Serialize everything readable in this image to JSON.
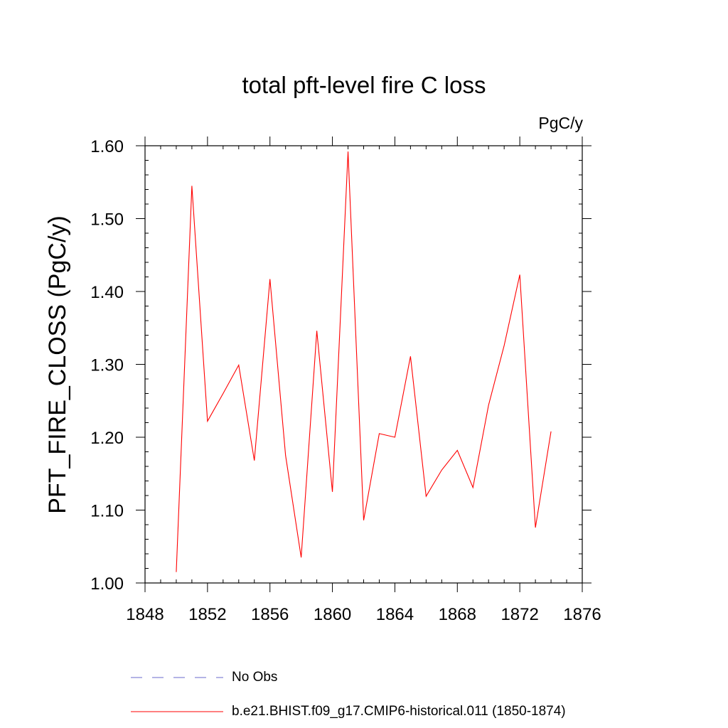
{
  "chart_data": {
    "type": "line",
    "title": "total pft-level fire C loss",
    "units_label": "PgC/y",
    "ylabel": "PFT_FIRE_CLOSS  (PgC/y)",
    "xlabel": "",
    "xlim": [
      1848,
      1876
    ],
    "ylim": [
      1.0,
      1.6
    ],
    "x_ticks": [
      1848,
      1852,
      1856,
      1860,
      1864,
      1868,
      1872,
      1876
    ],
    "y_ticks": [
      1.0,
      1.1,
      1.2,
      1.3,
      1.4,
      1.5,
      1.6
    ],
    "x_tick_labels": [
      "1848",
      "1852",
      "1856",
      "1860",
      "1864",
      "1868",
      "1872",
      "1876"
    ],
    "y_tick_labels": [
      "1.00",
      "1.10",
      "1.20",
      "1.30",
      "1.40",
      "1.50",
      "1.60"
    ],
    "grid": false,
    "legend_position": "bottom",
    "series": [
      {
        "name": "No Obs",
        "color": "#6a6acd",
        "style": "dashed",
        "x": [],
        "values": []
      },
      {
        "name": "b.e21.BHIST.f09_g17.CMIP6-historical.011 (1850-1874)",
        "color": "#ff0000",
        "style": "solid",
        "x": [
          1850,
          1851,
          1852,
          1853,
          1854,
          1855,
          1856,
          1857,
          1858,
          1859,
          1860,
          1861,
          1862,
          1863,
          1864,
          1865,
          1866,
          1867,
          1868,
          1869,
          1870,
          1871,
          1872,
          1873,
          1874
        ],
        "values": [
          1.015,
          1.545,
          1.222,
          1.26,
          1.299,
          1.168,
          1.417,
          1.175,
          1.035,
          1.346,
          1.125,
          1.592,
          1.086,
          1.205,
          1.2,
          1.311,
          1.119,
          1.155,
          1.182,
          1.131,
          1.244,
          1.326,
          1.423,
          1.076,
          1.208
        ]
      }
    ]
  },
  "legend": {
    "items": [
      {
        "label": "No Obs",
        "color": "#6a6acd",
        "style": "dashed"
      },
      {
        "label": "b.e21.BHIST.f09_g17.CMIP6-historical.011 (1850-1874)",
        "color": "#ff0000",
        "style": "solid"
      }
    ]
  }
}
